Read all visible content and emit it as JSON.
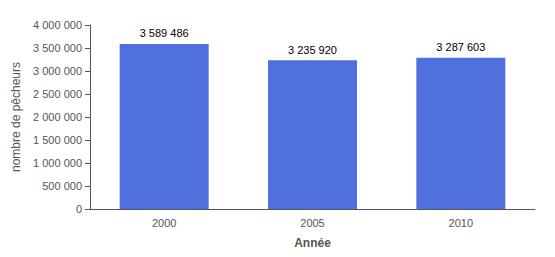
{
  "chart_data": {
    "type": "bar",
    "categories": [
      "2000",
      "2005",
      "2010"
    ],
    "values": [
      3589486,
      3235920,
      3287603
    ],
    "value_labels": [
      "3 589 486",
      "3 235 920",
      "3 287 603"
    ],
    "data_labels": true,
    "xlabel": "Année",
    "ylabel": "nombre de pêcheurs",
    "ylim": [
      0,
      4000000
    ],
    "yticks": [
      0,
      {
        "value": 500000,
        "label": "500 000"
      },
      {
        "value": 1000000,
        "label": "1 000 000"
      },
      {
        "value": 1500000,
        "label": "1 500 000"
      },
      {
        "value": 2000000,
        "label": "2 000 000"
      },
      {
        "value": 2500000,
        "label": "2 500 000"
      },
      {
        "value": 3000000,
        "label": "3 000 000"
      },
      {
        "value": 3500000,
        "label": "3 500 000"
      },
      {
        "value": 4000000,
        "label": "4 000 000"
      }
    ],
    "grid": false
  }
}
